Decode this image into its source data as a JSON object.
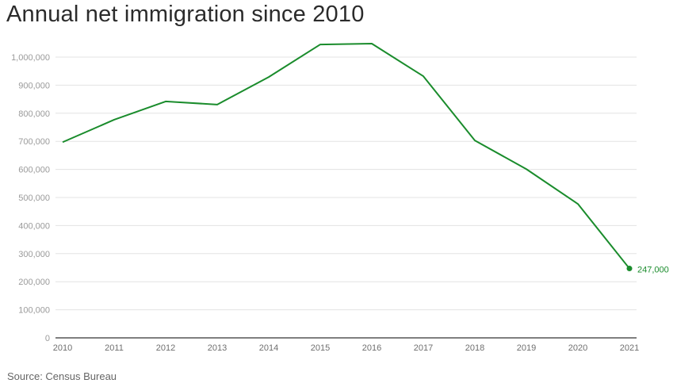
{
  "chart_data": {
    "type": "line",
    "title": "Annual net immigration since 2010",
    "source": "Source: Census Bureau",
    "xlabel": "",
    "ylabel": "",
    "categories": [
      "2010",
      "2011",
      "2012",
      "2013",
      "2014",
      "2015",
      "2016",
      "2017",
      "2018",
      "2019",
      "2020",
      "2021"
    ],
    "series": [
      {
        "name": "Net immigration",
        "color": "#1a8c2c",
        "values": [
          697000,
          777000,
          842000,
          831000,
          929000,
          1045000,
          1048000,
          932000,
          703000,
          601000,
          477000,
          247000
        ]
      }
    ],
    "ylim": [
      0,
      1000000
    ],
    "yticks": [
      0,
      100000,
      200000,
      300000,
      400000,
      500000,
      600000,
      700000,
      800000,
      900000,
      1000000
    ],
    "ytick_labels": [
      "0",
      "100,000",
      "200,000",
      "300,000",
      "400,000",
      "500,000",
      "600,000",
      "700,000",
      "800,000",
      "900,000",
      "1,000,000"
    ],
    "end_label": "247,000",
    "grid": true,
    "gridline_color": "#e3e3e3",
    "axis_color": "#333333"
  }
}
